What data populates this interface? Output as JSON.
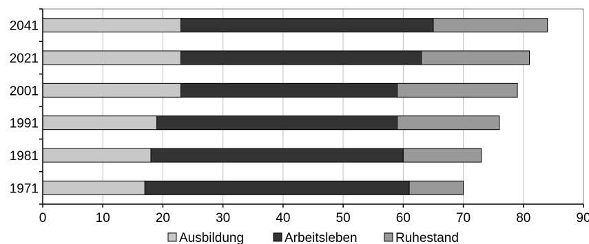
{
  "chart_data": {
    "type": "bar",
    "orientation": "horizontal",
    "stacked": true,
    "categories": [
      "1971",
      "1981",
      "1991",
      "2001",
      "2021",
      "2041"
    ],
    "series": [
      {
        "name": "Ausbildung",
        "color": "#c8c8c8",
        "values": [
          17,
          18,
          19,
          23,
          23,
          23
        ]
      },
      {
        "name": "Arbeitsleben",
        "color": "#333333",
        "values": [
          44,
          42,
          40,
          36,
          40,
          42
        ]
      },
      {
        "name": "Ruhestand",
        "color": "#999999",
        "values": [
          9,
          13,
          17,
          20,
          18,
          19
        ]
      }
    ],
    "x_ticks": [
      "0",
      "10",
      "20",
      "30",
      "40",
      "50",
      "60",
      "70",
      "80",
      "90"
    ],
    "xlim": [
      0,
      90
    ],
    "grid": true,
    "legend_position": "bottom"
  }
}
